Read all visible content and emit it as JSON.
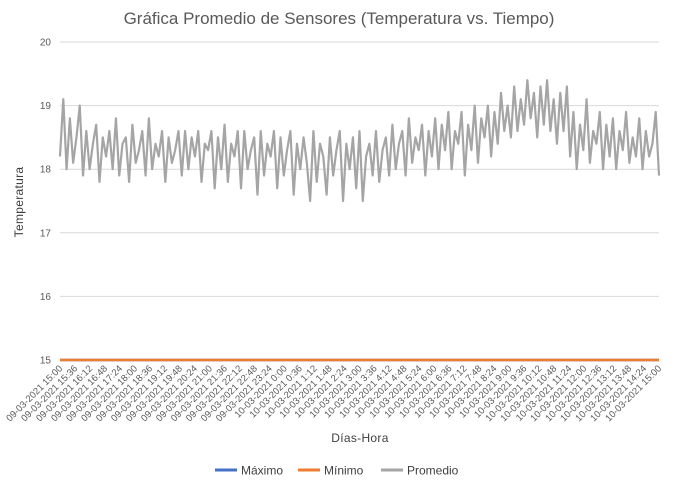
{
  "chart_data": {
    "type": "line",
    "title": "Gráfica Promedio de Sensores (Temperatura vs. Tiempo)",
    "xlabel": "Días-Hora",
    "ylabel": "Temperatura",
    "ylim": [
      15,
      20
    ],
    "yticks": [
      "15",
      "16",
      "17",
      "18",
      "19",
      "20"
    ],
    "grid": true,
    "legend_position": "bottom",
    "x_tick_labels": [
      "09-03-2021 15:00",
      "09-03-2021 15:36",
      "09-03-2021 16:12",
      "09-03-2021 16:48",
      "09-03-2021 17:24",
      "09-03-2021 18:00",
      "09-03-2021 18:36",
      "09-03-2021 19:12",
      "09-03-2021 19:48",
      "09-03-2021 20:24",
      "09-03-2021 21:00",
      "09-03-2021 21:36",
      "09-03-2021 22:12",
      "09-03-2021 22:48",
      "09-03-2021 23:24",
      "10-03-2021 0:00",
      "10-03-2021 0:36",
      "10-03-2021 1:12",
      "10-03-2021 1:48",
      "10-03-2021 2:24",
      "10-03-2021 3:00",
      "10-03-2021 3:36",
      "10-03-2021 4:12",
      "10-03-2021 4:48",
      "10-03-2021 5:24",
      "10-03-2021 6:00",
      "10-03-2021 6:36",
      "10-03-2021 7:12",
      "10-03-2021 7:48",
      "10-03-2021 8:24",
      "10-03-2021 9:00",
      "10-03-2021 9:36",
      "10-03-2021 10:12",
      "10-03-2021 10:48",
      "10-03-2021 11:24",
      "10-03-2021 12:00",
      "10-03-2021 12:36",
      "10-03-2021 13:12",
      "10-03-2021 13:48",
      "10-03-2021 14:24",
      "10-03-2021 15:00"
    ],
    "series": [
      {
        "name": "Máximo",
        "color": "#4472c4",
        "values": [
          15,
          15
        ]
      },
      {
        "name": "Mínimo",
        "color": "#ed7d31",
        "values": [
          15,
          15
        ]
      },
      {
        "name": "Promedio",
        "color": "#a5a5a5",
        "values": [
          18.2,
          19.1,
          18.0,
          18.8,
          18.1,
          18.5,
          19.0,
          17.9,
          18.6,
          18.0,
          18.4,
          18.7,
          17.8,
          18.5,
          18.2,
          18.6,
          18.0,
          18.8,
          17.9,
          18.4,
          18.5,
          17.8,
          18.7,
          18.1,
          18.3,
          18.6,
          17.9,
          18.8,
          18.0,
          18.4,
          18.2,
          18.6,
          17.8,
          18.5,
          18.1,
          18.3,
          18.6,
          17.9,
          18.6,
          18.0,
          18.5,
          18.2,
          18.6,
          17.8,
          18.4,
          18.3,
          18.6,
          17.7,
          18.5,
          18.0,
          18.7,
          17.8,
          18.4,
          18.2,
          18.6,
          17.7,
          18.6,
          18.0,
          18.3,
          18.5,
          17.6,
          18.6,
          17.9,
          18.4,
          18.2,
          18.6,
          17.7,
          18.5,
          17.9,
          18.3,
          18.6,
          17.6,
          18.4,
          18.0,
          18.5,
          18.1,
          17.5,
          18.6,
          17.8,
          18.4,
          18.2,
          17.6,
          18.5,
          17.9,
          18.3,
          18.6,
          17.5,
          18.4,
          18.0,
          18.5,
          17.7,
          18.6,
          17.5,
          18.2,
          18.4,
          17.9,
          18.6,
          17.8,
          18.3,
          18.5,
          17.9,
          18.7,
          18.0,
          18.4,
          18.6,
          17.9,
          18.8,
          18.1,
          18.5,
          18.3,
          18.7,
          17.9,
          18.6,
          18.2,
          18.8,
          18.0,
          18.7,
          18.3,
          18.9,
          18.0,
          18.6,
          18.4,
          18.9,
          17.9,
          18.7,
          18.3,
          19.0,
          18.1,
          18.8,
          18.5,
          19.0,
          18.2,
          18.9,
          18.4,
          19.2,
          18.6,
          19.0,
          18.5,
          19.3,
          18.6,
          19.1,
          18.7,
          19.4,
          18.8,
          19.2,
          18.5,
          19.3,
          18.7,
          19.4,
          18.6,
          19.1,
          18.4,
          19.2,
          18.6,
          19.3,
          18.2,
          18.9,
          18.0,
          18.7,
          18.3,
          19.1,
          18.1,
          18.6,
          18.4,
          18.9,
          18.0,
          18.7,
          18.2,
          18.8,
          18.0,
          18.6,
          18.3,
          18.9,
          18.1,
          18.5,
          18.2,
          18.8,
          18.0,
          18.6,
          18.2,
          18.4,
          18.9,
          17.9
        ]
      }
    ]
  }
}
